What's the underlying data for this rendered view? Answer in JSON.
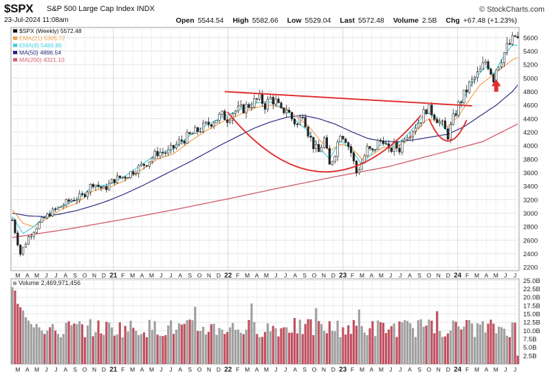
{
  "header": {
    "symbol": "$SPX",
    "name": "S&P 500 Large Cap Index",
    "exchange": "INDX",
    "date": "23-Jul-2024 11:08am",
    "logo": "© StockCharts.com",
    "open_label": "Open",
    "open": "5544.54",
    "high_label": "High",
    "high": "5582.66",
    "low_label": "Low",
    "low": "5529.04",
    "last_label": "Last",
    "last": "5572.48",
    "volume_label": "Volume",
    "volume": "2.5B",
    "chg_label": "Chg",
    "chg": "+67.48 (+1.23%)"
  },
  "legend": [
    {
      "text": "$SPX (Weekly) 5572.48",
      "color": "#111111"
    },
    {
      "text": "EMA(21) 5305.72",
      "color": "#f0a04b"
    },
    {
      "text": "EMA(8) 5486.86",
      "color": "#40d0e0"
    },
    {
      "text": "MA(50) 4896.54",
      "color": "#2a2a80"
    },
    {
      "text": "MA(200) 4321.10",
      "color": "#d06070"
    }
  ],
  "volume_label": "Volume 2,469,971,456",
  "colors": {
    "up": "#a0a0a0",
    "down": "#c05060",
    "ema21": "#f0a04b",
    "ema8": "#40d0e0",
    "ma50": "#2a2a80",
    "ma200": "#d06070",
    "annotation": "#e03030"
  },
  "annotations": [
    "neckline",
    "cup",
    "handle",
    "arrow-up"
  ],
  "chart_data": {
    "type": "candlestick",
    "interval": "weekly",
    "price_axis": {
      "ticks": [
        2200,
        2400,
        2600,
        2800,
        3000,
        3200,
        3400,
        3600,
        3800,
        4000,
        4200,
        4400,
        4600,
        4800,
        5000,
        5200,
        5400,
        5600
      ],
      "range": [
        2150,
        5750
      ]
    },
    "volume_axis": {
      "ticks": [
        "2.5B",
        "5.0B",
        "7.5B",
        "10.0B",
        "12.5B",
        "15.0B",
        "17.5B",
        "20.0B",
        "22.5B",
        "25.0B"
      ],
      "range": [
        0,
        25.5
      ]
    },
    "x_axis_labels": [
      "M",
      "A",
      "M",
      "J",
      "J",
      "A",
      "S",
      "O",
      "N",
      "D",
      "21",
      "F",
      "M",
      "A",
      "M",
      "J",
      "J",
      "A",
      "S",
      "O",
      "N",
      "D",
      "22",
      "F",
      "M",
      "A",
      "M",
      "J",
      "J",
      "A",
      "S",
      "O",
      "N",
      "D",
      "23",
      "F",
      "M",
      "A",
      "M",
      "J",
      "J",
      "A",
      "S",
      "O",
      "N",
      "D",
      "24",
      "F",
      "M",
      "A",
      "M",
      "J",
      "J"
    ],
    "x_label_years": [
      "21",
      "22",
      "23",
      "24"
    ],
    "price_anchors": [
      [
        0,
        2900
      ],
      [
        3,
        2400
      ],
      [
        6,
        2650
      ],
      [
        10,
        2850
      ],
      [
        14,
        3000
      ],
      [
        18,
        3100
      ],
      [
        22,
        3200
      ],
      [
        26,
        3250
      ],
      [
        30,
        3450
      ],
      [
        34,
        3350
      ],
      [
        38,
        3500
      ],
      [
        42,
        3550
      ],
      [
        46,
        3650
      ],
      [
        50,
        3750
      ],
      [
        54,
        3900
      ],
      [
        58,
        3900
      ],
      [
        62,
        4050
      ],
      [
        66,
        4150
      ],
      [
        70,
        4250
      ],
      [
        74,
        4350
      ],
      [
        78,
        4450
      ],
      [
        80,
        4400
      ],
      [
        82,
        4500
      ],
      [
        86,
        4550
      ],
      [
        90,
        4650
      ],
      [
        92,
        4700
      ],
      [
        94,
        4600
      ],
      [
        96,
        4700
      ],
      [
        98,
        4650
      ],
      [
        100,
        4500
      ],
      [
        102,
        4550
      ],
      [
        104,
        4400
      ],
      [
        106,
        4300
      ],
      [
        108,
        4500
      ],
      [
        110,
        4200
      ],
      [
        112,
        4000
      ],
      [
        114,
        3900
      ],
      [
        116,
        4100
      ],
      [
        118,
        3700
      ],
      [
        120,
        3900
      ],
      [
        122,
        4200
      ],
      [
        124,
        4100
      ],
      [
        126,
        3900
      ],
      [
        128,
        3600
      ],
      [
        130,
        3750
      ],
      [
        132,
        3950
      ],
      [
        134,
        3900
      ],
      [
        136,
        4050
      ],
      [
        138,
        4100
      ],
      [
        140,
        3900
      ],
      [
        142,
        4000
      ],
      [
        144,
        3950
      ],
      [
        146,
        4150
      ],
      [
        148,
        4200
      ],
      [
        150,
        4300
      ],
      [
        152,
        4400
      ],
      [
        154,
        4550
      ],
      [
        156,
        4500
      ],
      [
        158,
        4400
      ],
      [
        160,
        4300
      ],
      [
        162,
        4150
      ],
      [
        164,
        4400
      ],
      [
        166,
        4600
      ],
      [
        168,
        4750
      ],
      [
        170,
        4900
      ],
      [
        172,
        5000
      ],
      [
        174,
        5100
      ],
      [
        176,
        5250
      ],
      [
        177,
        5200
      ],
      [
        178,
        5100
      ],
      [
        179,
        5000
      ],
      [
        180,
        5150
      ],
      [
        182,
        5300
      ],
      [
        184,
        5450
      ],
      [
        186,
        5550
      ],
      [
        187,
        5620
      ],
      [
        188,
        5572
      ]
    ],
    "ema8_anchors": [
      [
        0,
        2950
      ],
      [
        4,
        2700
      ],
      [
        8,
        2800
      ],
      [
        12,
        2950
      ],
      [
        18,
        3100
      ],
      [
        24,
        3200
      ],
      [
        30,
        3400
      ],
      [
        36,
        3420
      ],
      [
        42,
        3550
      ],
      [
        48,
        3720
      ],
      [
        54,
        3880
      ],
      [
        60,
        3950
      ],
      [
        66,
        4150
      ],
      [
        72,
        4300
      ],
      [
        78,
        4420
      ],
      [
        84,
        4520
      ],
      [
        90,
        4630
      ],
      [
        96,
        4650
      ],
      [
        102,
        4520
      ],
      [
        106,
        4350
      ],
      [
        110,
        4220
      ],
      [
        114,
        3980
      ],
      [
        118,
        3800
      ],
      [
        122,
        4080
      ],
      [
        126,
        3950
      ],
      [
        130,
        3720
      ],
      [
        134,
        3900
      ],
      [
        138,
        4050
      ],
      [
        142,
        3980
      ],
      [
        146,
        4120
      ],
      [
        150,
        4300
      ],
      [
        154,
        4500
      ],
      [
        158,
        4400
      ],
      [
        162,
        4200
      ],
      [
        166,
        4560
      ],
      [
        170,
        4860
      ],
      [
        174,
        5080
      ],
      [
        177,
        5200
      ],
      [
        179,
        5050
      ],
      [
        182,
        5280
      ],
      [
        186,
        5490
      ],
      [
        188,
        5487
      ]
    ],
    "ema21_anchors": [
      [
        0,
        3050
      ],
      [
        4,
        2850
      ],
      [
        8,
        2800
      ],
      [
        12,
        2900
      ],
      [
        18,
        3050
      ],
      [
        24,
        3150
      ],
      [
        30,
        3330
      ],
      [
        36,
        3380
      ],
      [
        42,
        3490
      ],
      [
        48,
        3640
      ],
      [
        54,
        3800
      ],
      [
        60,
        3880
      ],
      [
        66,
        4060
      ],
      [
        72,
        4220
      ],
      [
        78,
        4350
      ],
      [
        84,
        4450
      ],
      [
        90,
        4560
      ],
      [
        96,
        4600
      ],
      [
        102,
        4550
      ],
      [
        106,
        4420
      ],
      [
        110,
        4300
      ],
      [
        114,
        4100
      ],
      [
        118,
        3920
      ],
      [
        122,
        4020
      ],
      [
        126,
        3980
      ],
      [
        130,
        3800
      ],
      [
        134,
        3870
      ],
      [
        138,
        3980
      ],
      [
        142,
        3960
      ],
      [
        146,
        4060
      ],
      [
        150,
        4200
      ],
      [
        154,
        4380
      ],
      [
        158,
        4380
      ],
      [
        162,
        4280
      ],
      [
        166,
        4440
      ],
      [
        170,
        4680
      ],
      [
        174,
        4900
      ],
      [
        178,
        5020
      ],
      [
        182,
        5150
      ],
      [
        186,
        5270
      ],
      [
        188,
        5306
      ]
    ],
    "ma50_anchors": [
      [
        0,
        3000
      ],
      [
        6,
        2960
      ],
      [
        12,
        2950
      ],
      [
        18,
        2990
      ],
      [
        24,
        3040
      ],
      [
        30,
        3110
      ],
      [
        36,
        3190
      ],
      [
        42,
        3290
      ],
      [
        48,
        3400
      ],
      [
        54,
        3520
      ],
      [
        60,
        3640
      ],
      [
        66,
        3760
      ],
      [
        72,
        3890
      ],
      [
        78,
        4020
      ],
      [
        84,
        4140
      ],
      [
        90,
        4260
      ],
      [
        96,
        4350
      ],
      [
        102,
        4420
      ],
      [
        108,
        4450
      ],
      [
        114,
        4400
      ],
      [
        120,
        4320
      ],
      [
        126,
        4210
      ],
      [
        132,
        4110
      ],
      [
        138,
        4060
      ],
      [
        144,
        4060
      ],
      [
        150,
        4090
      ],
      [
        156,
        4130
      ],
      [
        162,
        4170
      ],
      [
        168,
        4280
      ],
      [
        174,
        4440
      ],
      [
        180,
        4600
      ],
      [
        186,
        4800
      ],
      [
        188,
        4897
      ]
    ],
    "ma200_anchors": [
      [
        0,
        2640
      ],
      [
        20,
        2760
      ],
      [
        40,
        2900
      ],
      [
        60,
        3050
      ],
      [
        80,
        3210
      ],
      [
        100,
        3380
      ],
      [
        120,
        3540
      ],
      [
        140,
        3690
      ],
      [
        160,
        3900
      ],
      [
        175,
        4060
      ],
      [
        188,
        4321
      ]
    ],
    "volume_pattern_billions": [
      23,
      22,
      18,
      17,
      16,
      14,
      13,
      12,
      11,
      12,
      11,
      10,
      9,
      10,
      11,
      12,
      10,
      9,
      8,
      9
    ]
  }
}
